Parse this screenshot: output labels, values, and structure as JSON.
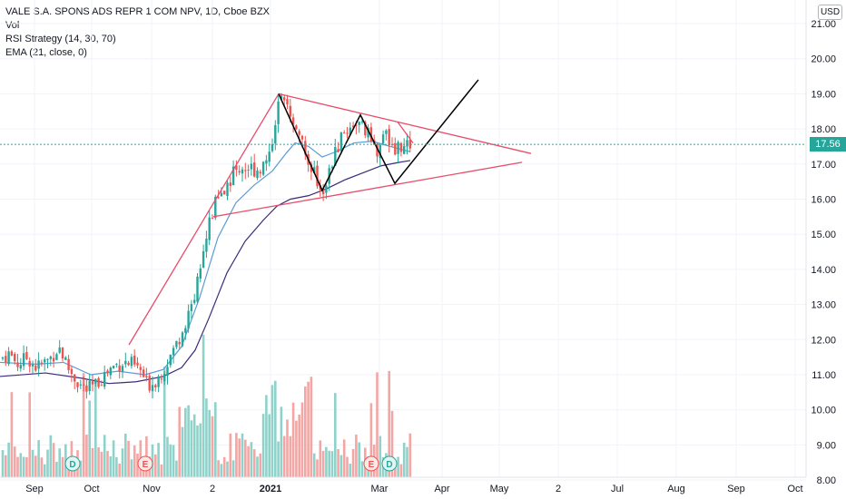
{
  "legend": {
    "title": "VALE S.A. SPONS ADS REPR 1 COM NPV, 1D, Cboe BZX",
    "vol": "Vol",
    "rsi": "RSI Strategy (14, 30, 70)",
    "ema": "EMA (21, close, 0)"
  },
  "currency": "USD",
  "last_price": "17.56",
  "colors": {
    "up": "#26a69a",
    "down": "#ef5350",
    "vol_up": "#8fd2c9",
    "vol_down": "#f3a6a4",
    "ema21": "#5b9bd5",
    "ema50": "#3d2a7a",
    "pattern": "#e84d6a",
    "zigzag": "#000000"
  },
  "chart_data": {
    "type": "candlestick",
    "x_axis_labels": [
      "Sep",
      "Oct",
      "Nov",
      "2",
      "2021",
      "Mar",
      "Apr",
      "May",
      "2",
      "Jul",
      "Aug",
      "Sep",
      "Oct"
    ],
    "y_axis_labels": [
      "8.00",
      "9.00",
      "10.00",
      "11.00",
      "12.00",
      "13.00",
      "14.00",
      "15.00",
      "16.00",
      "17.00",
      "18.00",
      "19.00",
      "20.00",
      "21.00"
    ],
    "ylim": [
      8,
      21.3
    ],
    "events": [
      {
        "label": "D",
        "kind": "dividend"
      },
      {
        "label": "E",
        "kind": "earnings"
      },
      {
        "label": "E",
        "kind": "earnings"
      },
      {
        "label": "D",
        "kind": "dividend"
      }
    ],
    "price_path": [
      [
        0,
        11.45
      ],
      [
        10,
        11.6
      ],
      [
        20,
        11.3
      ],
      [
        30,
        11.5
      ],
      [
        40,
        11.2
      ],
      [
        55,
        11.45
      ],
      [
        65,
        11.8
      ],
      [
        75,
        11.2
      ],
      [
        85,
        10.8
      ],
      [
        95,
        10.55
      ],
      [
        105,
        10.7
      ],
      [
        115,
        11.0
      ],
      [
        125,
        11.25
      ],
      [
        135,
        11.35
      ],
      [
        145,
        11.3
      ],
      [
        155,
        11.1
      ],
      [
        162,
        10.7
      ],
      [
        170,
        10.8
      ],
      [
        178,
        11.05
      ],
      [
        185,
        11.4
      ],
      [
        193,
        11.8
      ],
      [
        200,
        12.2
      ],
      [
        207,
        12.7
      ],
      [
        213,
        13.1
      ],
      [
        220,
        14.0
      ],
      [
        226,
        14.8
      ],
      [
        232,
        15.5
      ],
      [
        238,
        15.9
      ],
      [
        245,
        16.1
      ],
      [
        252,
        16.5
      ],
      [
        258,
        16.8
      ],
      [
        265,
        16.9
      ],
      [
        272,
        16.9
      ],
      [
        280,
        16.85
      ],
      [
        288,
        16.9
      ],
      [
        296,
        17.2
      ],
      [
        302,
        18.0
      ],
      [
        308,
        18.8
      ],
      [
        314,
        18.6
      ],
      [
        320,
        18.5
      ],
      [
        326,
        18.1
      ],
      [
        332,
        17.6
      ],
      [
        338,
        17.2
      ],
      [
        344,
        16.9
      ],
      [
        350,
        16.4
      ],
      [
        356,
        16.3
      ],
      [
        362,
        16.7
      ],
      [
        368,
        17.2
      ],
      [
        374,
        17.6
      ],
      [
        380,
        17.9
      ],
      [
        386,
        18.1
      ],
      [
        392,
        18.2
      ],
      [
        398,
        18.05
      ],
      [
        404,
        17.9
      ],
      [
        410,
        17.6
      ],
      [
        416,
        17.3
      ],
      [
        422,
        17.9
      ],
      [
        428,
        17.7
      ],
      [
        434,
        17.2
      ],
      [
        440,
        17.6
      ],
      [
        446,
        17.4
      ],
      [
        452,
        17.56
      ]
    ],
    "ema21_path": [
      [
        0,
        11.35
      ],
      [
        40,
        11.3
      ],
      [
        70,
        11.35
      ],
      [
        100,
        11.0
      ],
      [
        130,
        11.1
      ],
      [
        160,
        11.0
      ],
      [
        180,
        11.15
      ],
      [
        200,
        11.8
      ],
      [
        220,
        13.2
      ],
      [
        240,
        14.9
      ],
      [
        260,
        15.9
      ],
      [
        280,
        16.4
      ],
      [
        300,
        16.8
      ],
      [
        315,
        17.3
      ],
      [
        325,
        17.6
      ],
      [
        340,
        17.5
      ],
      [
        355,
        17.2
      ],
      [
        370,
        17.35
      ],
      [
        390,
        17.6
      ],
      [
        410,
        17.65
      ],
      [
        430,
        17.5
      ],
      [
        452,
        17.35
      ]
    ],
    "ema50_path": [
      [
        0,
        10.95
      ],
      [
        50,
        11.05
      ],
      [
        90,
        10.9
      ],
      [
        120,
        10.75
      ],
      [
        150,
        10.8
      ],
      [
        180,
        10.95
      ],
      [
        200,
        11.2
      ],
      [
        215,
        11.7
      ],
      [
        230,
        12.6
      ],
      [
        250,
        13.9
      ],
      [
        270,
        14.8
      ],
      [
        290,
        15.4
      ],
      [
        305,
        15.8
      ],
      [
        320,
        16.0
      ],
      [
        340,
        16.1
      ],
      [
        360,
        16.3
      ],
      [
        380,
        16.55
      ],
      [
        400,
        16.75
      ],
      [
        420,
        16.95
      ],
      [
        440,
        17.05
      ],
      [
        452,
        17.1
      ]
    ],
    "pattern_lines": [
      [
        [
          142,
          11.85
        ],
        [
          307,
          19.0
        ]
      ],
      [
        [
          307,
          19.0
        ],
        [
          585,
          17.3
        ]
      ],
      [
        [
          235,
          15.5
        ],
        [
          575,
          17.05
        ]
      ],
      [
        [
          438,
          18.2
        ],
        [
          455,
          17.6
        ]
      ]
    ],
    "zigzag_path": [
      [
        307,
        19.0
      ],
      [
        355,
        16.25
      ],
      [
        397,
        18.4
      ],
      [
        435,
        16.45
      ],
      [
        527,
        19.4
      ]
    ]
  }
}
